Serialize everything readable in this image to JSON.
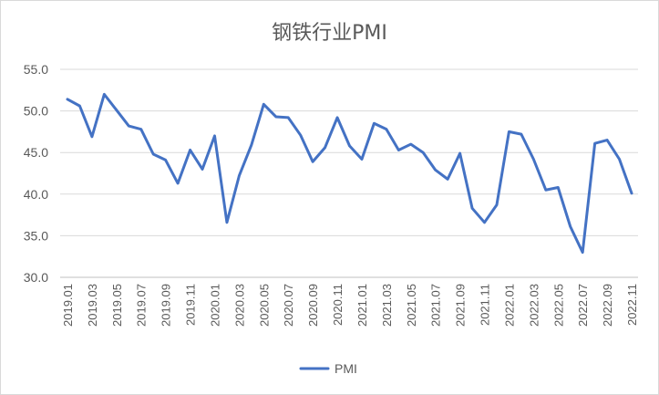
{
  "chart_data": {
    "type": "line",
    "title": "钢铁行业PMI",
    "xlabel": "",
    "ylabel": "",
    "ylim": [
      30,
      55
    ],
    "y_ticks": [
      "30.0",
      "35.0",
      "40.0",
      "45.0",
      "50.0",
      "55.0"
    ],
    "grid": "horizontal",
    "legend_position": "bottom",
    "x_tick_labels": [
      "2019.01",
      "2019.03",
      "2019.05",
      "2019.07",
      "2019.09",
      "2019.11",
      "2020.01",
      "2020.03",
      "2020.05",
      "2020.07",
      "2020.09",
      "2020.11",
      "2021.01",
      "2021.03",
      "2021.05",
      "2021.07",
      "2021.09",
      "2021.11",
      "2022.01",
      "2022.03",
      "2022.05",
      "2022.07",
      "2022.09",
      "2022.11"
    ],
    "x": [
      "2019.01",
      "2019.02",
      "2019.03",
      "2019.04",
      "2019.05",
      "2019.06",
      "2019.07",
      "2019.08",
      "2019.09",
      "2019.10",
      "2019.11",
      "2019.12",
      "2020.01",
      "2020.02",
      "2020.03",
      "2020.04",
      "2020.05",
      "2020.06",
      "2020.07",
      "2020.08",
      "2020.09",
      "2020.10",
      "2020.11",
      "2020.12",
      "2021.01",
      "2021.02",
      "2021.03",
      "2021.04",
      "2021.05",
      "2021.06",
      "2021.07",
      "2021.08",
      "2021.09",
      "2021.10",
      "2021.11",
      "2021.12",
      "2022.01",
      "2022.02",
      "2022.03",
      "2022.04",
      "2022.05",
      "2022.06",
      "2022.07",
      "2022.08",
      "2022.09",
      "2022.10",
      "2022.11"
    ],
    "series": [
      {
        "name": "PMI",
        "color": "#4472c4",
        "values": [
          51.4,
          50.6,
          46.9,
          52.0,
          50.1,
          48.2,
          47.8,
          44.8,
          44.1,
          41.3,
          45.3,
          43.0,
          47.0,
          36.6,
          42.2,
          45.9,
          50.8,
          49.3,
          49.2,
          47.1,
          43.9,
          45.6,
          49.2,
          45.8,
          44.2,
          48.5,
          47.8,
          45.3,
          46.0,
          45.0,
          42.9,
          41.8,
          44.9,
          38.3,
          36.6,
          38.7,
          47.5,
          47.2,
          44.2,
          40.5,
          40.8,
          36.1,
          33.0,
          46.1,
          46.5,
          44.2,
          40.1
        ]
      }
    ]
  }
}
